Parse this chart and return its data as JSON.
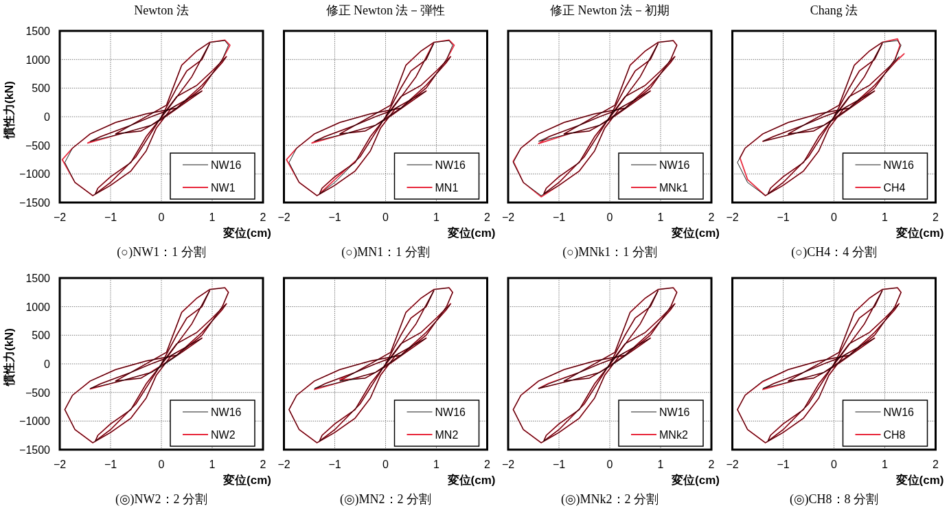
{
  "chart_data": [
    {
      "type": "line",
      "title": "Newton 法",
      "xlabel": "変位(cm)",
      "ylabel": "慣性力(kN)",
      "annotations": [
        "(○)NW1：1 分割"
      ],
      "xlim": [
        -2,
        2
      ],
      "ylim": [
        -1500,
        1500
      ],
      "xticks": [
        -2,
        -1,
        0,
        1,
        2
      ],
      "yticks": [
        -1500,
        -1000,
        -500,
        0,
        500,
        1000,
        1500
      ],
      "grid": true,
      "legend": "bottom right",
      "series": [
        {
          "name": "NW16",
          "color": "#000000",
          "x": [
            0,
            0.3,
            0.5,
            0.8,
            0.95,
            0.6,
            0.1,
            -0.3,
            -0.6,
            -1.0,
            -1.25,
            -1.3,
            -1.0,
            -0.5,
            0,
            0.3,
            0.7,
            1.0,
            1.28,
            1.2,
            0.8,
            0.3,
            -0.2,
            -0.8,
            -1.4,
            -1.2,
            -0.6,
            0.1,
            0.4,
            0.7,
            0.95,
            1.25,
            1.32,
            1.2,
            0.8,
            0.3,
            -0.3,
            -0.9,
            -1.4,
            -1.75,
            -1.9,
            -1.7,
            -1.35,
            -1.0,
            -0.6,
            -0.3,
            -0.1,
            0.2,
            0.5,
            0.8,
            0.4,
            0,
            -0.4,
            -0.9,
            -0.6,
            -0.2,
            0.1,
            0.3
          ],
          "values": [
            0,
            500,
            800,
            1000,
            1280,
            700,
            100,
            -350,
            -800,
            -1050,
            -1250,
            -1350,
            -1150,
            -700,
            0,
            350,
            550,
            800,
            1050,
            950,
            550,
            150,
            -150,
            -300,
            -430,
            -350,
            -150,
            200,
            900,
            1150,
            1300,
            1330,
            1250,
            1000,
            500,
            150,
            50,
            -100,
            -300,
            -550,
            -800,
            -1150,
            -1380,
            -1200,
            -950,
            -600,
            -200,
            150,
            300,
            450,
            200,
            -50,
            -250,
            -300,
            -150,
            0,
            100,
            200
          ]
        },
        {
          "name": "NW1",
          "color": "#e8283c",
          "x": [
            0,
            0.3,
            0.5,
            0.8,
            0.95,
            0.6,
            0.1,
            -0.3,
            -0.6,
            -1.0,
            -1.25,
            -1.3,
            -1.0,
            -0.5,
            0,
            0.3,
            0.7,
            1.0,
            1.28,
            1.2,
            0.8,
            0.3,
            -0.2,
            -0.8,
            -1.45,
            -1.2,
            -0.6,
            0.1,
            0.4,
            0.7,
            0.95,
            1.25,
            1.35,
            1.2,
            0.8,
            0.3,
            -0.3,
            -0.9,
            -1.4,
            -1.75,
            -1.95,
            -1.7,
            -1.35,
            -1.0,
            -0.6,
            -0.3,
            -0.1,
            0.2,
            0.5,
            0.8,
            0.4,
            0,
            -0.4,
            -0.9,
            -0.6,
            -0.2,
            0.1,
            0.3
          ],
          "values": [
            0,
            500,
            800,
            1000,
            1280,
            700,
            100,
            -350,
            -800,
            -1050,
            -1250,
            -1350,
            -1150,
            -700,
            0,
            350,
            550,
            800,
            1050,
            950,
            550,
            150,
            -150,
            -300,
            -460,
            -350,
            -150,
            200,
            900,
            1150,
            1300,
            1340,
            1250,
            1000,
            500,
            150,
            50,
            -100,
            -300,
            -550,
            -750,
            -1150,
            -1380,
            -1200,
            -950,
            -600,
            -200,
            150,
            300,
            450,
            200,
            -50,
            -250,
            -300,
            -150,
            0,
            100,
            200
          ]
        }
      ]
    },
    {
      "type": "line",
      "title": "修正 Newton 法－弾性",
      "xlabel": "変位(cm)",
      "annotations": [
        "(○)MN1：1 分割"
      ],
      "xlim": [
        -2,
        2
      ],
      "ylim": [
        -1500,
        1500
      ],
      "xticks": [
        -2,
        -1,
        0,
        1,
        2
      ],
      "yticks": [
        -1500,
        -1000,
        -500,
        0,
        500,
        1000,
        1500
      ],
      "grid": true,
      "legend": "bottom right",
      "tick_labels": "x",
      "series": [
        {
          "name": "NW16",
          "color": "#000000",
          "x": [
            0,
            0.3,
            0.5,
            0.8,
            0.95,
            0.6,
            0.1,
            -0.3,
            -0.6,
            -1.0,
            -1.25,
            -1.3,
            -1.0,
            -0.5,
            0,
            0.3,
            0.7,
            1.0,
            1.28,
            1.2,
            0.8,
            0.3,
            -0.2,
            -0.8,
            -1.4,
            -1.2,
            -0.6,
            0.1,
            0.4,
            0.7,
            0.95,
            1.25,
            1.32,
            1.2,
            0.8,
            0.3,
            -0.3,
            -0.9,
            -1.4,
            -1.75,
            -1.9,
            -1.7,
            -1.35,
            -1.0,
            -0.6,
            -0.3,
            -0.1,
            0.2,
            0.5,
            0.8,
            0.4,
            0,
            -0.4,
            -0.9,
            -0.6,
            -0.2,
            0.1,
            0.3
          ],
          "values": [
            0,
            500,
            800,
            1000,
            1280,
            700,
            100,
            -350,
            -800,
            -1050,
            -1250,
            -1350,
            -1150,
            -700,
            0,
            350,
            550,
            800,
            1050,
            950,
            550,
            150,
            -150,
            -300,
            -430,
            -350,
            -150,
            200,
            900,
            1150,
            1300,
            1330,
            1250,
            1000,
            500,
            150,
            50,
            -100,
            -300,
            -550,
            -800,
            -1150,
            -1380,
            -1200,
            -950,
            -600,
            -200,
            150,
            300,
            450,
            200,
            -50,
            -250,
            -300,
            -150,
            0,
            100,
            200
          ]
        },
        {
          "name": "MN1",
          "color": "#e8283c",
          "x": [
            0,
            0.3,
            0.5,
            0.8,
            0.95,
            0.6,
            0.1,
            -0.3,
            -0.6,
            -1.0,
            -1.25,
            -1.3,
            -1.0,
            -0.5,
            0,
            0.3,
            0.7,
            1.0,
            1.28,
            1.2,
            0.8,
            0.3,
            -0.2,
            -0.8,
            -1.45,
            -1.2,
            -0.6,
            0.1,
            0.4,
            0.7,
            0.95,
            1.25,
            1.35,
            1.2,
            0.8,
            0.3,
            -0.3,
            -0.9,
            -1.4,
            -1.75,
            -1.95,
            -1.7,
            -1.35,
            -1.0,
            -0.6,
            -0.3,
            -0.1,
            0.2,
            0.5,
            0.8,
            0.4,
            0,
            -0.4,
            -0.9,
            -0.6,
            -0.2,
            0.1,
            0.3
          ],
          "values": [
            0,
            500,
            800,
            1000,
            1300,
            700,
            100,
            -350,
            -800,
            -1050,
            -1250,
            -1350,
            -1100,
            -700,
            0,
            350,
            550,
            800,
            1050,
            950,
            550,
            150,
            -150,
            -300,
            -460,
            -350,
            -150,
            200,
            900,
            1150,
            1300,
            1340,
            1250,
            1000,
            500,
            150,
            50,
            -100,
            -300,
            -550,
            -750,
            -1150,
            -1380,
            -1200,
            -950,
            -600,
            -200,
            150,
            300,
            450,
            200,
            -50,
            -250,
            -300,
            -150,
            0,
            100,
            200
          ]
        }
      ]
    },
    {
      "type": "line",
      "title": "修正 Newton 法－初期",
      "xlabel": "変位(cm)",
      "annotations": [
        "(○)MNk1：1 分割"
      ],
      "xlim": [
        -2,
        2
      ],
      "ylim": [
        -1500,
        1500
      ],
      "xticks": [
        -2,
        -1,
        0,
        1,
        2
      ],
      "yticks": [
        -1500,
        -1000,
        -500,
        0,
        500,
        1000,
        1500
      ],
      "grid": true,
      "legend": "bottom right",
      "tick_labels": "x",
      "series": [
        {
          "name": "NW16",
          "color": "#000000",
          "x": [
            0,
            0.3,
            0.5,
            0.8,
            0.95,
            0.6,
            0.1,
            -0.3,
            -0.6,
            -1.0,
            -1.25,
            -1.3,
            -1.0,
            -0.5,
            0,
            0.3,
            0.7,
            1.0,
            1.28,
            1.2,
            0.8,
            0.3,
            -0.2,
            -0.8,
            -1.4,
            -1.2,
            -0.6,
            0.1,
            0.4,
            0.7,
            0.95,
            1.25,
            1.32,
            1.2,
            0.8,
            0.3,
            -0.3,
            -0.9,
            -1.4,
            -1.75,
            -1.9,
            -1.7,
            -1.35,
            -1.0,
            -0.6,
            -0.3,
            -0.1,
            0.2,
            0.5,
            0.8,
            0.4,
            0,
            -0.4,
            -0.9,
            -0.6,
            -0.2,
            0.1,
            0.3
          ],
          "values": [
            0,
            500,
            800,
            1000,
            1280,
            700,
            100,
            -350,
            -800,
            -1050,
            -1250,
            -1350,
            -1150,
            -700,
            0,
            350,
            550,
            800,
            1050,
            950,
            550,
            150,
            -150,
            -300,
            -430,
            -350,
            -150,
            200,
            900,
            1150,
            1300,
            1330,
            1250,
            1000,
            500,
            150,
            50,
            -100,
            -300,
            -550,
            -800,
            -1150,
            -1380,
            -1200,
            -950,
            -600,
            -200,
            150,
            300,
            450,
            200,
            -50,
            -250,
            -300,
            -150,
            0,
            100,
            200
          ]
        },
        {
          "name": "MNk1",
          "color": "#e8283c",
          "x": [
            0,
            0.3,
            0.5,
            0.8,
            0.95,
            0.6,
            0.1,
            -0.3,
            -0.6,
            -1.0,
            -1.25,
            -1.3,
            -1.0,
            -0.5,
            0,
            0.3,
            0.7,
            1.0,
            1.28,
            1.2,
            0.8,
            0.3,
            -0.2,
            -0.8,
            -1.4,
            -1.2,
            -0.6,
            0.1,
            0.4,
            0.7,
            0.95,
            1.25,
            1.32,
            1.2,
            0.8,
            0.3,
            -0.3,
            -0.9,
            -1.4,
            -1.75,
            -1.9,
            -1.7,
            -1.35,
            -1.0,
            -0.6,
            -0.3,
            -0.1,
            0.2,
            0.5,
            0.8,
            0.4,
            0,
            -0.4,
            -0.9,
            -0.6,
            -0.2,
            0.1,
            0.3
          ],
          "values": [
            0,
            500,
            800,
            1000,
            1280,
            700,
            100,
            -350,
            -800,
            -1050,
            -1250,
            -1350,
            -1150,
            -700,
            0,
            350,
            550,
            800,
            1050,
            950,
            550,
            150,
            -150,
            -300,
            -470,
            -350,
            -150,
            200,
            900,
            1150,
            1300,
            1330,
            1250,
            1000,
            500,
            150,
            50,
            -100,
            -300,
            -550,
            -780,
            -1150,
            -1400,
            -1200,
            -950,
            -600,
            -200,
            150,
            300,
            450,
            200,
            -50,
            -250,
            -300,
            -150,
            0,
            100,
            200
          ]
        }
      ]
    },
    {
      "type": "line",
      "title": "Chang 法",
      "xlabel": "変位(cm)",
      "annotations": [
        "(○)CH4：4 分割"
      ],
      "xlim": [
        -2,
        2
      ],
      "ylim": [
        -1500,
        1500
      ],
      "xticks": [
        -2,
        -1,
        0,
        1,
        2
      ],
      "yticks": [
        -1500,
        -1000,
        -500,
        0,
        500,
        1000,
        1500
      ],
      "grid": true,
      "legend": "bottom right",
      "tick_labels": "x",
      "series": [
        {
          "name": "NW16",
          "color": "#000000",
          "x": [
            0,
            0.3,
            0.5,
            0.8,
            0.95,
            0.6,
            0.1,
            -0.3,
            -0.6,
            -1.0,
            -1.25,
            -1.3,
            -1.0,
            -0.5,
            0,
            0.3,
            0.7,
            1.0,
            1.28,
            1.2,
            0.8,
            0.3,
            -0.2,
            -0.8,
            -1.4,
            -1.2,
            -0.6,
            0.1,
            0.4,
            0.7,
            0.95,
            1.25,
            1.32,
            1.2,
            0.8,
            0.3,
            -0.3,
            -0.9,
            -1.4,
            -1.75,
            -1.9,
            -1.7,
            -1.35,
            -1.0,
            -0.6,
            -0.3,
            -0.1,
            0.2,
            0.5,
            0.8,
            0.4,
            0,
            -0.4,
            -0.9,
            -0.6,
            -0.2,
            0.1,
            0.3
          ],
          "values": [
            0,
            500,
            800,
            1000,
            1280,
            700,
            100,
            -350,
            -800,
            -1050,
            -1250,
            -1350,
            -1150,
            -700,
            0,
            350,
            550,
            800,
            1050,
            950,
            550,
            150,
            -150,
            -300,
            -430,
            -350,
            -150,
            200,
            900,
            1150,
            1300,
            1330,
            1250,
            1000,
            500,
            150,
            50,
            -100,
            -300,
            -550,
            -800,
            -1150,
            -1380,
            -1200,
            -950,
            -600,
            -200,
            150,
            300,
            450,
            200,
            -50,
            -250,
            -300,
            -150,
            0,
            100,
            200
          ]
        },
        {
          "name": "CH4",
          "color": "#e8283c",
          "x": [
            0,
            0.3,
            0.5,
            0.8,
            0.95,
            0.6,
            0.1,
            -0.3,
            -0.6,
            -1.0,
            -1.25,
            -1.3,
            -1.0,
            -0.5,
            0,
            0.3,
            0.7,
            1.0,
            1.38,
            1.2,
            0.8,
            0.3,
            -0.2,
            -0.8,
            -1.4,
            -1.2,
            -0.6,
            0.1,
            0.4,
            0.7,
            0.95,
            1.25,
            1.3,
            1.2,
            0.8,
            0.3,
            -0.3,
            -0.9,
            -1.4,
            -1.75,
            -1.85,
            -1.7,
            -1.35,
            -1.0,
            -0.6,
            -0.3,
            -0.1,
            0.2,
            0.5,
            0.8,
            0.4,
            0,
            -0.4,
            -0.9,
            -0.6,
            -0.2,
            0.1,
            0.3
          ],
          "values": [
            0,
            500,
            800,
            1000,
            1280,
            700,
            100,
            -350,
            -800,
            -1050,
            -1250,
            -1350,
            -1150,
            -700,
            0,
            350,
            550,
            800,
            1100,
            950,
            550,
            150,
            -150,
            -300,
            -430,
            -350,
            -150,
            200,
            900,
            1150,
            1300,
            1360,
            1250,
            1000,
            500,
            150,
            50,
            -100,
            -300,
            -550,
            -720,
            -1100,
            -1380,
            -1200,
            -950,
            -600,
            -200,
            150,
            300,
            450,
            200,
            -50,
            -250,
            -300,
            -150,
            0,
            100,
            200
          ]
        }
      ]
    },
    {
      "type": "line",
      "xlabel": "変位(cm)",
      "ylabel": "慣性力(kN)",
      "annotations": [
        "(◎)NW2：2 分割"
      ],
      "xlim": [
        -2,
        2
      ],
      "ylim": [
        -1500,
        1500
      ],
      "xticks": [
        -2,
        -1,
        0,
        1,
        2
      ],
      "yticks": [
        -1500,
        -1000,
        -500,
        0,
        500,
        1000,
        1500
      ],
      "grid": true,
      "legend": "bottom right",
      "series": [
        {
          "name": "NW16",
          "color": "#000000",
          "x": [
            0,
            0.3,
            0.5,
            0.8,
            0.95,
            0.6,
            0.1,
            -0.3,
            -0.6,
            -1.0,
            -1.25,
            -1.3,
            -1.0,
            -0.5,
            0,
            0.3,
            0.7,
            1.0,
            1.28,
            1.2,
            0.8,
            0.3,
            -0.2,
            -0.8,
            -1.4,
            -1.2,
            -0.6,
            0.1,
            0.4,
            0.7,
            0.95,
            1.25,
            1.32,
            1.2,
            0.8,
            0.3,
            -0.3,
            -0.9,
            -1.4,
            -1.75,
            -1.9,
            -1.7,
            -1.35,
            -1.0,
            -0.6,
            -0.3,
            -0.1,
            0.2,
            0.5,
            0.8,
            0.4,
            0,
            -0.4,
            -0.9,
            -0.6,
            -0.2,
            0.1,
            0.3
          ],
          "values": [
            0,
            500,
            800,
            1000,
            1280,
            700,
            100,
            -350,
            -800,
            -1050,
            -1250,
            -1350,
            -1150,
            -700,
            0,
            350,
            550,
            800,
            1050,
            950,
            550,
            150,
            -150,
            -300,
            -430,
            -350,
            -150,
            200,
            900,
            1150,
            1300,
            1330,
            1250,
            1000,
            500,
            150,
            50,
            -100,
            -300,
            -550,
            -800,
            -1150,
            -1380,
            -1200,
            -950,
            -600,
            -200,
            150,
            300,
            450,
            200,
            -50,
            -250,
            -300,
            -150,
            0,
            100,
            200
          ]
        },
        {
          "name": "NW2",
          "color": "#e8283c",
          "x": [
            0,
            0.3,
            0.5,
            0.8,
            0.95,
            0.6,
            0.1,
            -0.3,
            -0.6,
            -1.0,
            -1.25,
            -1.3,
            -1.0,
            -0.5,
            0,
            0.3,
            0.7,
            1.0,
            1.28,
            1.2,
            0.8,
            0.3,
            -0.2,
            -0.8,
            -1.4,
            -1.2,
            -0.6,
            0.1,
            0.4,
            0.7,
            0.95,
            1.25,
            1.32,
            1.2,
            0.8,
            0.3,
            -0.3,
            -0.9,
            -1.4,
            -1.75,
            -1.9,
            -1.7,
            -1.35,
            -1.0,
            -0.6,
            -0.3,
            -0.1,
            0.2,
            0.5,
            0.8,
            0.4,
            0,
            -0.4,
            -0.9,
            -0.6,
            -0.2,
            0.1,
            0.3
          ],
          "values": [
            0,
            500,
            800,
            1000,
            1280,
            700,
            100,
            -350,
            -800,
            -1050,
            -1250,
            -1350,
            -1150,
            -700,
            0,
            350,
            550,
            800,
            1050,
            950,
            550,
            150,
            -150,
            -300,
            -440,
            -350,
            -150,
            200,
            900,
            1150,
            1300,
            1330,
            1250,
            1000,
            500,
            150,
            50,
            -100,
            -300,
            -550,
            -800,
            -1150,
            -1380,
            -1200,
            -950,
            -600,
            -200,
            150,
            300,
            450,
            200,
            -30,
            -250,
            -300,
            -150,
            0,
            100,
            200
          ]
        }
      ]
    },
    {
      "type": "line",
      "xlabel": "変位(cm)",
      "annotations": [
        "(◎)MN2：2 分割"
      ],
      "xlim": [
        -2,
        2
      ],
      "ylim": [
        -1500,
        1500
      ],
      "xticks": [
        -2,
        -1,
        0,
        1,
        2
      ],
      "yticks": [
        -1500,
        -1000,
        -500,
        0,
        500,
        1000,
        1500
      ],
      "grid": true,
      "legend": "bottom right",
      "tick_labels": "x",
      "series": [
        {
          "name": "NW16",
          "color": "#000000",
          "x": [
            0,
            0.3,
            0.5,
            0.8,
            0.95,
            0.6,
            0.1,
            -0.3,
            -0.6,
            -1.0,
            -1.25,
            -1.3,
            -1.0,
            -0.5,
            0,
            0.3,
            0.7,
            1.0,
            1.28,
            1.2,
            0.8,
            0.3,
            -0.2,
            -0.8,
            -1.4,
            -1.2,
            -0.6,
            0.1,
            0.4,
            0.7,
            0.95,
            1.25,
            1.32,
            1.2,
            0.8,
            0.3,
            -0.3,
            -0.9,
            -1.4,
            -1.75,
            -1.9,
            -1.7,
            -1.35,
            -1.0,
            -0.6,
            -0.3,
            -0.1,
            0.2,
            0.5,
            0.8,
            0.4,
            0,
            -0.4,
            -0.9,
            -0.6,
            -0.2,
            0.1,
            0.3
          ],
          "values": [
            0,
            500,
            800,
            1000,
            1280,
            700,
            100,
            -350,
            -800,
            -1050,
            -1250,
            -1350,
            -1150,
            -700,
            0,
            350,
            550,
            800,
            1050,
            950,
            550,
            150,
            -150,
            -300,
            -430,
            -350,
            -150,
            200,
            900,
            1150,
            1300,
            1330,
            1250,
            1000,
            500,
            150,
            50,
            -100,
            -300,
            -550,
            -800,
            -1150,
            -1380,
            -1200,
            -950,
            -600,
            -200,
            150,
            300,
            450,
            200,
            -50,
            -250,
            -300,
            -150,
            0,
            100,
            200
          ]
        },
        {
          "name": "MN2",
          "color": "#e8283c",
          "x": [
            0,
            0.3,
            0.5,
            0.8,
            0.95,
            0.6,
            0.1,
            -0.3,
            -0.6,
            -1.0,
            -1.25,
            -1.3,
            -1.0,
            -0.5,
            0,
            0.3,
            0.7,
            1.0,
            1.28,
            1.2,
            0.8,
            0.3,
            -0.2,
            -0.8,
            -1.4,
            -1.2,
            -0.6,
            0.1,
            0.4,
            0.7,
            0.95,
            1.25,
            1.32,
            1.2,
            0.8,
            0.3,
            -0.3,
            -0.9,
            -1.4,
            -1.75,
            -1.9,
            -1.7,
            -1.35,
            -1.0,
            -0.6,
            -0.3,
            -0.1,
            0.2,
            0.5,
            0.8,
            0.4,
            0,
            -0.4,
            -0.9,
            -0.6,
            -0.2,
            0.1,
            0.3
          ],
          "values": [
            0,
            500,
            800,
            1000,
            1280,
            700,
            100,
            -350,
            -800,
            -1050,
            -1250,
            -1350,
            -1150,
            -700,
            0,
            350,
            550,
            800,
            1050,
            950,
            550,
            150,
            -150,
            -300,
            -450,
            -350,
            -150,
            200,
            900,
            1150,
            1300,
            1330,
            1250,
            1000,
            500,
            150,
            50,
            -100,
            -300,
            -550,
            -800,
            -1150,
            -1380,
            -1200,
            -950,
            -600,
            -200,
            150,
            300,
            450,
            200,
            -50,
            -250,
            -280,
            -150,
            0,
            100,
            200
          ]
        }
      ]
    },
    {
      "type": "line",
      "xlabel": "変位(cm)",
      "annotations": [
        "(◎)MNk2：2 分割"
      ],
      "xlim": [
        -2,
        2
      ],
      "ylim": [
        -1500,
        1500
      ],
      "xticks": [
        -2,
        -1,
        0,
        1,
        2
      ],
      "yticks": [
        -1500,
        -1000,
        -500,
        0,
        500,
        1000,
        1500
      ],
      "grid": true,
      "legend": "bottom right",
      "tick_labels": "x",
      "series": [
        {
          "name": "NW16",
          "color": "#000000",
          "x": [
            0,
            0.3,
            0.5,
            0.8,
            0.95,
            0.6,
            0.1,
            -0.3,
            -0.6,
            -1.0,
            -1.25,
            -1.3,
            -1.0,
            -0.5,
            0,
            0.3,
            0.7,
            1.0,
            1.28,
            1.2,
            0.8,
            0.3,
            -0.2,
            -0.8,
            -1.4,
            -1.2,
            -0.6,
            0.1,
            0.4,
            0.7,
            0.95,
            1.25,
            1.32,
            1.2,
            0.8,
            0.3,
            -0.3,
            -0.9,
            -1.4,
            -1.75,
            -1.9,
            -1.7,
            -1.35,
            -1.0,
            -0.6,
            -0.3,
            -0.1,
            0.2,
            0.5,
            0.8,
            0.4,
            0,
            -0.4,
            -0.9,
            -0.6,
            -0.2,
            0.1,
            0.3
          ],
          "values": [
            0,
            500,
            800,
            1000,
            1280,
            700,
            100,
            -350,
            -800,
            -1050,
            -1250,
            -1350,
            -1150,
            -700,
            0,
            350,
            550,
            800,
            1050,
            950,
            550,
            150,
            -150,
            -300,
            -430,
            -350,
            -150,
            200,
            900,
            1150,
            1300,
            1330,
            1250,
            1000,
            500,
            150,
            50,
            -100,
            -300,
            -550,
            -800,
            -1150,
            -1380,
            -1200,
            -950,
            -600,
            -200,
            150,
            300,
            450,
            200,
            -50,
            -250,
            -300,
            -150,
            0,
            100,
            200
          ]
        },
        {
          "name": "MNk2",
          "color": "#e8283c",
          "x": [
            0,
            0.3,
            0.5,
            0.8,
            0.95,
            0.6,
            0.1,
            -0.3,
            -0.6,
            -1.0,
            -1.25,
            -1.3,
            -1.0,
            -0.5,
            0,
            0.3,
            0.7,
            1.0,
            1.28,
            1.2,
            0.8,
            0.3,
            -0.2,
            -0.8,
            -1.4,
            -1.2,
            -0.6,
            0.1,
            0.4,
            0.7,
            0.95,
            1.25,
            1.32,
            1.2,
            0.8,
            0.3,
            -0.3,
            -0.9,
            -1.4,
            -1.75,
            -1.9,
            -1.7,
            -1.35,
            -1.0,
            -0.6,
            -0.3,
            -0.1,
            0.2,
            0.5,
            0.8,
            0.4,
            0,
            -0.4,
            -0.9,
            -0.6,
            -0.2,
            0.1,
            0.3
          ],
          "values": [
            0,
            500,
            800,
            1000,
            1280,
            700,
            100,
            -350,
            -800,
            -1050,
            -1250,
            -1350,
            -1150,
            -700,
            0,
            350,
            550,
            800,
            1050,
            950,
            550,
            150,
            -150,
            -300,
            -430,
            -340,
            -150,
            200,
            900,
            1150,
            1300,
            1330,
            1250,
            1000,
            500,
            150,
            50,
            -100,
            -300,
            -550,
            -800,
            -1150,
            -1380,
            -1200,
            -950,
            -600,
            -200,
            150,
            300,
            450,
            200,
            -40,
            -250,
            -300,
            -150,
            0,
            100,
            200
          ]
        }
      ]
    },
    {
      "type": "line",
      "xlabel": "変位(cm)",
      "annotations": [
        "(◎)CH8：8 分割"
      ],
      "xlim": [
        -2,
        2
      ],
      "ylim": [
        -1500,
        1500
      ],
      "xticks": [
        -2,
        -1,
        0,
        1,
        2
      ],
      "yticks": [
        -1500,
        -1000,
        -500,
        0,
        500,
        1000,
        1500
      ],
      "grid": true,
      "legend": "bottom right",
      "tick_labels": "x",
      "series": [
        {
          "name": "NW16",
          "color": "#000000",
          "x": [
            0,
            0.3,
            0.5,
            0.8,
            0.95,
            0.6,
            0.1,
            -0.3,
            -0.6,
            -1.0,
            -1.25,
            -1.3,
            -1.0,
            -0.5,
            0,
            0.3,
            0.7,
            1.0,
            1.28,
            1.2,
            0.8,
            0.3,
            -0.2,
            -0.8,
            -1.4,
            -1.2,
            -0.6,
            0.1,
            0.4,
            0.7,
            0.95,
            1.25,
            1.32,
            1.2,
            0.8,
            0.3,
            -0.3,
            -0.9,
            -1.4,
            -1.75,
            -1.9,
            -1.7,
            -1.35,
            -1.0,
            -0.6,
            -0.3,
            -0.1,
            0.2,
            0.5,
            0.8,
            0.4,
            0,
            -0.4,
            -0.9,
            -0.6,
            -0.2,
            0.1,
            0.3
          ],
          "values": [
            0,
            500,
            800,
            1000,
            1280,
            700,
            100,
            -350,
            -800,
            -1050,
            -1250,
            -1350,
            -1150,
            -700,
            0,
            350,
            550,
            800,
            1050,
            950,
            550,
            150,
            -150,
            -300,
            -430,
            -350,
            -150,
            200,
            900,
            1150,
            1300,
            1330,
            1250,
            1000,
            500,
            150,
            50,
            -100,
            -300,
            -550,
            -800,
            -1150,
            -1380,
            -1200,
            -950,
            -600,
            -200,
            150,
            300,
            450,
            200,
            -50,
            -250,
            -300,
            -150,
            0,
            100,
            200
          ]
        },
        {
          "name": "CH8",
          "color": "#e8283c",
          "x": [
            0,
            0.3,
            0.5,
            0.8,
            0.95,
            0.6,
            0.1,
            -0.3,
            -0.6,
            -1.0,
            -1.25,
            -1.3,
            -1.0,
            -0.5,
            0,
            0.3,
            0.7,
            1.0,
            1.28,
            1.2,
            0.8,
            0.3,
            -0.2,
            -0.8,
            -1.4,
            -1.2,
            -0.6,
            0.1,
            0.4,
            0.7,
            0.95,
            1.25,
            1.32,
            1.2,
            0.8,
            0.3,
            -0.3,
            -0.9,
            -1.4,
            -1.75,
            -1.9,
            -1.7,
            -1.35,
            -1.0,
            -0.6,
            -0.3,
            -0.1,
            0.2,
            0.5,
            0.8,
            0.4,
            0,
            -0.4,
            -0.9,
            -0.6,
            -0.2,
            0.1,
            0.3
          ],
          "values": [
            0,
            500,
            800,
            1000,
            1280,
            700,
            100,
            -350,
            -800,
            -1050,
            -1250,
            -1350,
            -1150,
            -700,
            0,
            350,
            550,
            800,
            1050,
            950,
            550,
            150,
            -150,
            -300,
            -450,
            -350,
            -150,
            200,
            900,
            1150,
            1300,
            1330,
            1250,
            1000,
            500,
            150,
            50,
            -100,
            -310,
            -550,
            -800,
            -1150,
            -1380,
            -1200,
            -950,
            -600,
            -200,
            150,
            300,
            450,
            200,
            -50,
            -250,
            -300,
            -150,
            0,
            100,
            200
          ]
        }
      ]
    }
  ]
}
